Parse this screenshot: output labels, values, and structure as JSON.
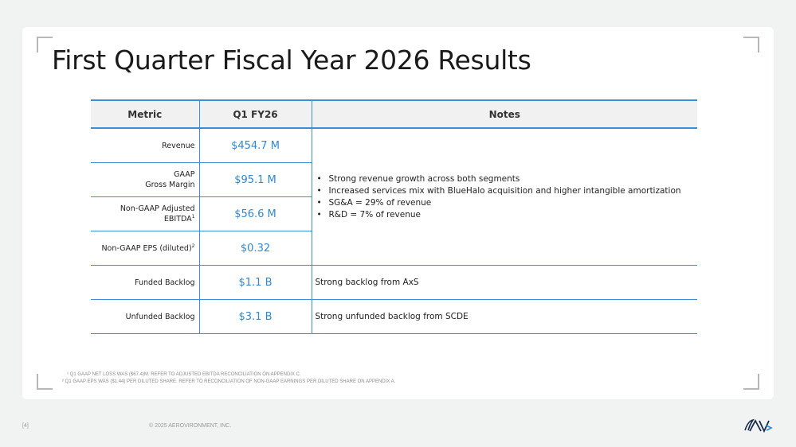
{
  "title": "First Quarter Fiscal Year 2026 Results",
  "table": {
    "headers": [
      "Metric",
      "Q1 FY26",
      "Notes"
    ],
    "rows": [
      {
        "metric": "Revenue",
        "value": "$454.7 M"
      },
      {
        "metric_line1": "GAAP",
        "metric_line2": "Gross Margin",
        "value": "$95.1 M"
      },
      {
        "metric_line1": "Non-GAAP Adjusted",
        "metric_line2": "EBITDA",
        "sup": "1",
        "value": "$56.6 M"
      },
      {
        "metric": "Non-GAAP EPS (diluted)",
        "sup": "2",
        "value": "$0.32"
      },
      {
        "metric": "Funded Backlog",
        "value": "$1.1 B",
        "note": "Strong backlog from AxS"
      },
      {
        "metric": "Unfunded Backlog",
        "value": "$3.1 B",
        "note": "Strong unfunded backlog from SCDE"
      }
    ],
    "shared_notes": [
      "Strong revenue growth across both segments",
      "Increased services mix with BlueHalo acquisition and higher intangible amortization",
      "SG&A = 29% of revenue",
      "R&D = 7% of revenue"
    ]
  },
  "footnotes": [
    "¹ Q1 GAAP NET LOSS WAS ($67.4)M. REFER TO ADJUSTED EBITDA RECONCILIATION ON APPENDIX C.",
    "² Q1 GAAP EPS WAS ($1.44) PER DILUTED SHARE.  REFER TO RECONCILIATION OF NON-GAAP EARNINGS PER DILUTED SHARE ON APPENDIX A."
  ],
  "footer": {
    "page_number": "[4]",
    "copyright": "© 2025 AEROVIRONMENT, INC."
  },
  "logo": {
    "icon": "av-logo-icon",
    "text": "AV"
  },
  "colors": {
    "accent": "#3a8fd6",
    "value_text": "#2e88d4",
    "header_bg": "#f1f1f1"
  }
}
